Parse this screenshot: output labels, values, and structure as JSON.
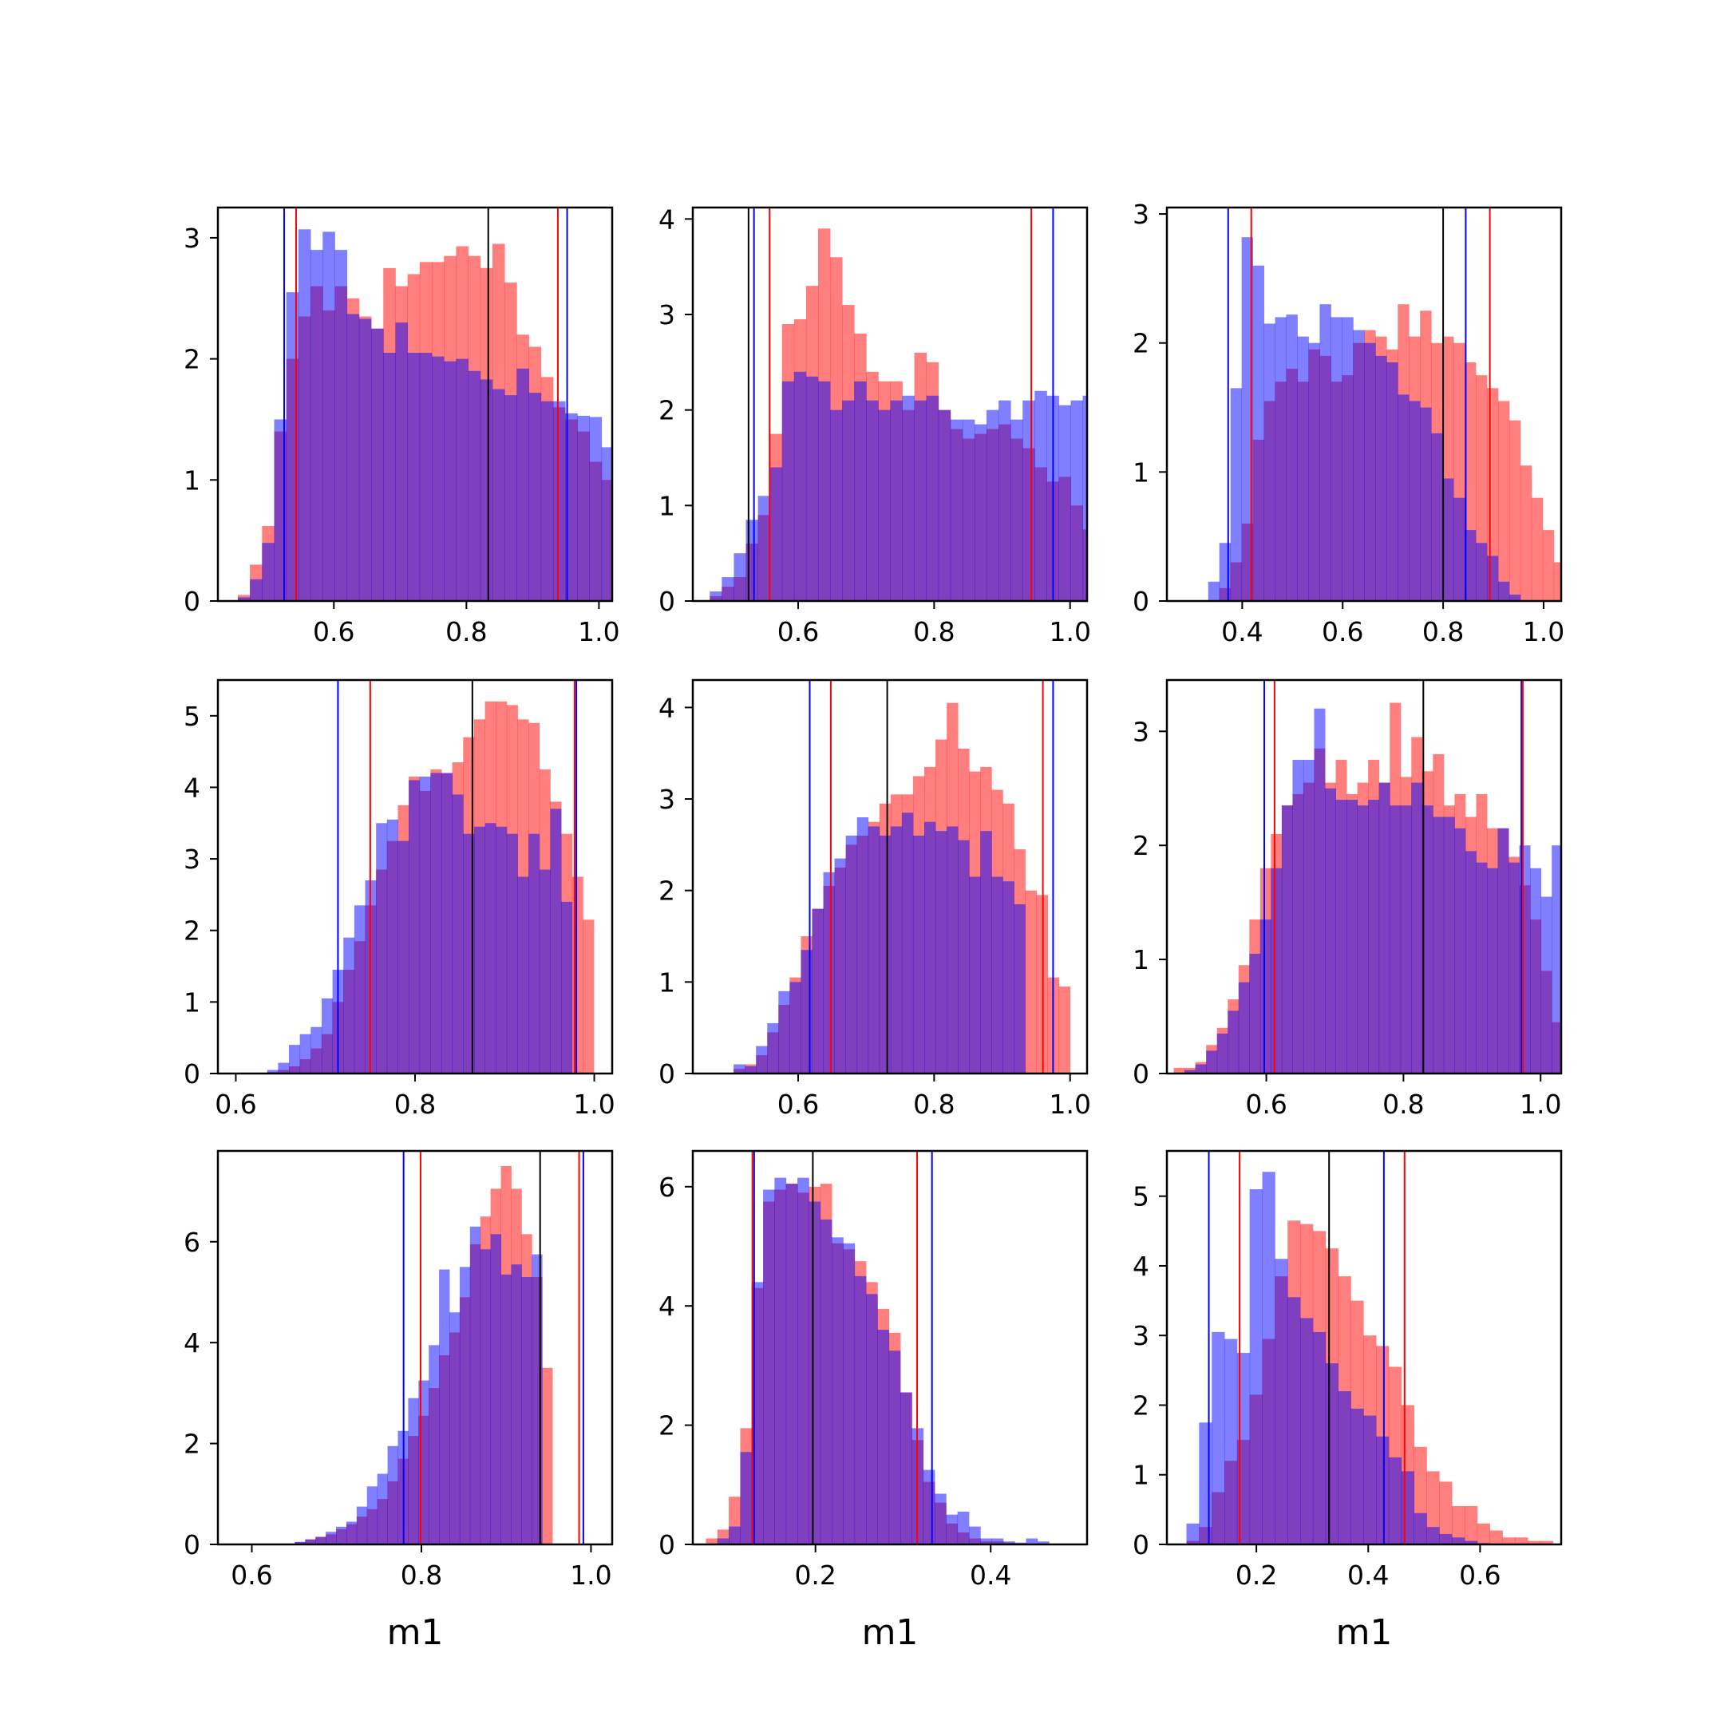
{
  "colors": {
    "red_hist": "#ff0000",
    "blue_hist": "#0000ff",
    "red_line": "#ff0000",
    "blue_line": "#0000ff",
    "median_line": "#000000"
  },
  "histogram_opacity": 0.5,
  "chart_data": [
    {
      "type": "histogram",
      "xlabel": "",
      "xlim": [
        0.425,
        1.02
      ],
      "ylim": [
        0,
        3.25
      ],
      "xticks": [
        0.6,
        0.8,
        1.0
      ],
      "xtick_labels": [
        "0.6",
        "0.8",
        "1.0"
      ],
      "yticks": [
        0,
        1,
        2,
        3
      ],
      "ytick_labels": [
        "0",
        "1",
        "2",
        "3"
      ],
      "bin_edges_start": 0.455,
      "bin_width": 0.0183,
      "series": [
        {
          "color": "red",
          "heights": [
            0.05,
            0.3,
            0.62,
            1.4,
            2.0,
            2.35,
            2.6,
            2.4,
            2.6,
            2.5,
            2.35,
            2.25,
            2.75,
            2.6,
            2.7,
            2.8,
            2.8,
            2.85,
            2.93,
            2.85,
            2.75,
            2.95,
            2.63,
            2.2,
            2.1,
            1.85,
            1.6,
            1.5,
            1.4,
            1.15,
            1.0,
            0.85,
            0.5,
            0.35
          ]
        },
        {
          "color": "blue",
          "heights": [
            0.03,
            0.18,
            0.48,
            1.5,
            2.55,
            3.07,
            2.9,
            3.05,
            2.9,
            2.37,
            2.33,
            2.25,
            2.05,
            2.3,
            2.05,
            2.05,
            2.02,
            1.98,
            2.0,
            1.9,
            1.83,
            1.75,
            1.7,
            1.92,
            1.72,
            1.65,
            1.65,
            1.55,
            1.53,
            1.52,
            1.27,
            1.3,
            0.85,
            1.05
          ]
        }
      ],
      "vlines": [
        {
          "x": 0.525,
          "color": "blue"
        },
        {
          "x": 0.543,
          "color": "red"
        },
        {
          "x": 0.833,
          "color": "black"
        },
        {
          "x": 0.938,
          "color": "red"
        },
        {
          "x": 0.952,
          "color": "blue"
        }
      ]
    },
    {
      "type": "histogram",
      "xlabel": "",
      "xlim": [
        0.445,
        1.025
      ],
      "ylim": [
        0,
        4.12
      ],
      "xticks": [
        0.6,
        0.8,
        1.0
      ],
      "xtick_labels": [
        "0.6",
        "0.8",
        "1.0"
      ],
      "yticks": [
        0,
        1,
        2,
        3,
        4
      ],
      "ytick_labels": [
        "0",
        "1",
        "2",
        "3",
        "4"
      ],
      "bin_edges_start": 0.47,
      "bin_width": 0.0177,
      "series": [
        {
          "color": "red",
          "heights": [
            0.05,
            0.15,
            0.25,
            0.6,
            0.9,
            1.75,
            2.9,
            2.95,
            3.3,
            3.9,
            3.6,
            3.1,
            2.8,
            2.4,
            2.3,
            2.3,
            2.0,
            2.6,
            2.5,
            2.0,
            1.8,
            1.7,
            1.75,
            1.8,
            1.85,
            1.7,
            1.6,
            1.4,
            1.25,
            1.3,
            1.0,
            0.75
          ]
        },
        {
          "color": "blue",
          "heights": [
            0.1,
            0.25,
            0.5,
            0.85,
            1.1,
            1.4,
            2.3,
            2.4,
            2.35,
            2.3,
            2.0,
            2.1,
            2.3,
            2.1,
            2.0,
            2.1,
            2.15,
            2.1,
            2.15,
            2.0,
            1.9,
            1.9,
            1.85,
            2.0,
            2.1,
            1.9,
            2.1,
            2.2,
            2.15,
            2.05,
            2.1,
            2.15,
            1.05
          ]
        }
      ],
      "vlines": [
        {
          "x": 0.527,
          "color": "black"
        },
        {
          "x": 0.535,
          "color": "blue"
        },
        {
          "x": 0.558,
          "color": "red"
        },
        {
          "x": 0.943,
          "color": "red"
        },
        {
          "x": 0.975,
          "color": "blue"
        }
      ]
    },
    {
      "type": "histogram",
      "xlabel": "",
      "xlim": [
        0.25,
        1.035
      ],
      "ylim": [
        0,
        3.05
      ],
      "xticks": [
        0.4,
        0.6,
        0.8,
        1.0
      ],
      "xtick_labels": [
        "0.4",
        "0.6",
        "0.8",
        "1.0"
      ],
      "yticks": [
        0,
        1,
        2,
        3
      ],
      "ytick_labels": [
        "0",
        "1",
        "2",
        "3"
      ],
      "bin_edges_start": 0.31,
      "bin_width": 0.0222,
      "series": [
        {
          "color": "red",
          "heights": [
            0.0,
            0.0,
            0.1,
            0.3,
            0.6,
            1.25,
            1.55,
            1.7,
            1.8,
            1.7,
            1.95,
            1.9,
            1.7,
            1.75,
            2.0,
            2.1,
            2.05,
            1.95,
            2.3,
            2.05,
            2.25,
            2.0,
            2.05,
            2.0,
            1.85,
            1.75,
            1.65,
            1.55,
            1.4,
            1.05,
            0.8,
            0.55,
            0.3,
            0.12
          ]
        },
        {
          "color": "blue",
          "heights": [
            0.0,
            0.15,
            0.45,
            1.65,
            2.82,
            2.6,
            2.15,
            2.2,
            2.22,
            2.05,
            2.0,
            2.3,
            2.2,
            2.2,
            2.1,
            2.0,
            1.9,
            1.85,
            1.6,
            1.55,
            1.5,
            1.3,
            0.95,
            0.8,
            0.55,
            0.45,
            0.35,
            0.15,
            0.05
          ]
        }
      ],
      "vlines": [
        {
          "x": 0.372,
          "color": "blue"
        },
        {
          "x": 0.418,
          "color": "red"
        },
        {
          "x": 0.8,
          "color": "black"
        },
        {
          "x": 0.845,
          "color": "blue"
        },
        {
          "x": 0.893,
          "color": "red"
        }
      ]
    },
    {
      "type": "histogram",
      "xlabel": "",
      "xlim": [
        0.58,
        1.02
      ],
      "ylim": [
        0,
        5.5
      ],
      "xticks": [
        0.6,
        0.8,
        1.0
      ],
      "xtick_labels": [
        "0.6",
        "0.8",
        "1.0"
      ],
      "yticks": [
        0,
        1,
        2,
        3,
        4,
        5
      ],
      "ytick_labels": [
        "0",
        "1",
        "2",
        "3",
        "4",
        "5"
      ],
      "bin_edges_start": 0.635,
      "bin_width": 0.01215,
      "series": [
        {
          "color": "red",
          "heights": [
            0.02,
            0.05,
            0.1,
            0.2,
            0.35,
            0.55,
            1.0,
            1.45,
            1.85,
            2.35,
            2.85,
            3.25,
            3.75,
            4.15,
            3.95,
            4.25,
            4.2,
            4.35,
            4.7,
            4.95,
            5.2,
            5.2,
            5.15,
            4.95,
            4.9,
            4.25,
            3.8,
            3.35,
            2.75,
            2.15
          ]
        },
        {
          "color": "blue",
          "heights": [
            0.05,
            0.15,
            0.4,
            0.55,
            0.65,
            1.05,
            1.45,
            1.9,
            2.35,
            2.7,
            3.5,
            3.55,
            3.25,
            4.1,
            4.15,
            4.2,
            4.2,
            3.9,
            3.35,
            3.45,
            3.5,
            3.45,
            3.35,
            2.75,
            3.35,
            2.85,
            3.7,
            2.4
          ]
        }
      ],
      "vlines": [
        {
          "x": 0.714,
          "color": "blue"
        },
        {
          "x": 0.75,
          "color": "red"
        },
        {
          "x": 0.864,
          "color": "black"
        },
        {
          "x": 0.978,
          "color": "red"
        },
        {
          "x": 0.98,
          "color": "blue"
        }
      ]
    },
    {
      "type": "histogram",
      "xlabel": "",
      "xlim": [
        0.445,
        1.025
      ],
      "ylim": [
        0,
        4.3
      ],
      "xticks": [
        0.6,
        0.8,
        1.0
      ],
      "xtick_labels": [
        "0.6",
        "0.8",
        "1.0"
      ],
      "yticks": [
        0,
        1,
        2,
        3,
        4
      ],
      "ytick_labels": [
        "0",
        "1",
        "2",
        "3",
        "4"
      ],
      "bin_edges_start": 0.505,
      "bin_width": 0.0165,
      "series": [
        {
          "color": "red",
          "heights": [
            0.05,
            0.1,
            0.2,
            0.45,
            0.75,
            1.05,
            1.5,
            1.8,
            2.05,
            2.25,
            2.5,
            2.6,
            2.75,
            2.95,
            3.05,
            3.05,
            3.25,
            3.35,
            3.65,
            4.05,
            3.55,
            3.3,
            3.35,
            3.1,
            2.95,
            2.45,
            2.0,
            1.95,
            1.05,
            0.95
          ]
        },
        {
          "color": "blue",
          "heights": [
            0.1,
            0.08,
            0.3,
            0.55,
            0.9,
            1.0,
            1.35,
            1.8,
            2.2,
            2.35,
            2.6,
            2.8,
            2.7,
            2.6,
            2.7,
            2.85,
            2.6,
            2.75,
            2.65,
            2.7,
            2.55,
            2.15,
            2.65,
            2.15,
            2.1,
            1.85
          ]
        }
      ],
      "vlines": [
        {
          "x": 0.617,
          "color": "blue"
        },
        {
          "x": 0.648,
          "color": "red"
        },
        {
          "x": 0.731,
          "color": "black"
        },
        {
          "x": 0.96,
          "color": "red"
        },
        {
          "x": 0.975,
          "color": "blue"
        }
      ]
    },
    {
      "type": "histogram",
      "xlabel": "",
      "xlim": [
        0.455,
        1.03
      ],
      "ylim": [
        0,
        3.45
      ],
      "xticks": [
        0.6,
        0.8,
        1.0
      ],
      "xtick_labels": [
        "0.6",
        "0.8",
        "1.0"
      ],
      "yticks": [
        0,
        1,
        2,
        3
      ],
      "ytick_labels": [
        "0",
        "1",
        "2",
        "3"
      ],
      "bin_edges_start": 0.465,
      "bin_width": 0.01575,
      "series": [
        {
          "color": "red",
          "heights": [
            0.05,
            0.05,
            0.1,
            0.25,
            0.4,
            0.65,
            0.95,
            1.35,
            1.8,
            2.1,
            2.35,
            2.45,
            2.55,
            2.85,
            2.55,
            2.75,
            2.45,
            2.55,
            2.75,
            2.55,
            3.25,
            2.6,
            2.95,
            2.65,
            2.8,
            2.35,
            2.45,
            2.25,
            2.45,
            2.15,
            2.15,
            1.9,
            1.65,
            1.35,
            0.9,
            0.45
          ]
        },
        {
          "color": "blue",
          "heights": [
            0.0,
            0.03,
            0.08,
            0.2,
            0.35,
            0.55,
            0.8,
            1.05,
            1.35,
            1.8,
            2.35,
            2.75,
            2.75,
            3.2,
            2.5,
            2.4,
            2.4,
            2.35,
            2.4,
            2.55,
            2.35,
            2.35,
            2.55,
            2.35,
            2.25,
            2.25,
            2.15,
            1.95,
            1.85,
            1.8,
            2.15,
            1.85,
            2.0,
            1.8,
            1.55,
            2.0
          ]
        }
      ],
      "vlines": [
        {
          "x": 0.597,
          "color": "blue"
        },
        {
          "x": 0.612,
          "color": "red"
        },
        {
          "x": 0.829,
          "color": "black"
        },
        {
          "x": 0.972,
          "color": "blue"
        },
        {
          "x": 0.974,
          "color": "red"
        }
      ]
    },
    {
      "type": "histogram",
      "xlabel": "m1",
      "xlim": [
        0.56,
        1.025
      ],
      "ylim": [
        0,
        7.8
      ],
      "xticks": [
        0.6,
        0.8,
        1.0
      ],
      "xtick_labels": [
        "0.6",
        "0.8",
        "1.0"
      ],
      "yticks": [
        0,
        2,
        4,
        6
      ],
      "ytick_labels": [
        "0",
        "2",
        "4",
        "6"
      ],
      "bin_edges_start": 0.59,
      "bin_width": 0.01215,
      "series": [
        {
          "color": "red",
          "heights": [
            0.0,
            0.0,
            0.0,
            0.0,
            0.0,
            0.05,
            0.1,
            0.15,
            0.2,
            0.3,
            0.4,
            0.55,
            0.7,
            0.9,
            1.25,
            1.7,
            2.15,
            2.55,
            3.1,
            3.75,
            4.2,
            4.9,
            5.95,
            6.5,
            7.05,
            7.5,
            7.05,
            6.15,
            5.3,
            3.5
          ]
        },
        {
          "color": "blue",
          "heights": [
            0.0,
            0.0,
            0.0,
            0.0,
            0.0,
            0.05,
            0.1,
            0.15,
            0.25,
            0.35,
            0.45,
            0.75,
            1.15,
            1.4,
            1.95,
            2.25,
            2.9,
            3.25,
            3.95,
            5.45,
            4.6,
            5.5,
            6.3,
            5.85,
            6.15,
            5.35,
            5.55,
            5.3,
            5.75
          ]
        }
      ],
      "vlines": [
        {
          "x": 0.779,
          "color": "blue"
        },
        {
          "x": 0.799,
          "color": "red"
        },
        {
          "x": 0.94,
          "color": "black"
        },
        {
          "x": 0.986,
          "color": "red"
        },
        {
          "x": 0.991,
          "color": "blue"
        }
      ]
    },
    {
      "type": "histogram",
      "xlabel": "m1",
      "xlim": [
        0.06,
        0.51
      ],
      "ylim": [
        0,
        6.6
      ],
      "xticks": [
        0.2,
        0.4
      ],
      "xtick_labels": [
        "0.2",
        "0.4"
      ],
      "yticks": [
        0,
        2,
        4,
        6
      ],
      "ytick_labels": [
        "0",
        "2",
        "4",
        "6"
      ],
      "bin_edges_start": 0.075,
      "bin_width": 0.01305,
      "series": [
        {
          "color": "red",
          "heights": [
            0.1,
            0.25,
            0.8,
            1.95,
            4.3,
            5.75,
            5.95,
            6.05,
            5.9,
            6.0,
            6.05,
            5.05,
            4.95,
            4.75,
            4.4,
            3.95,
            3.55,
            2.55,
            1.75,
            1.05,
            0.7,
            0.35,
            0.2,
            0.1,
            0.05,
            0.05,
            0.03,
            0.02,
            0.01,
            0.01
          ]
        },
        {
          "color": "blue",
          "heights": [
            0.0,
            0.1,
            0.3,
            1.55,
            4.4,
            5.95,
            6.15,
            6.05,
            6.15,
            5.75,
            5.45,
            5.15,
            5.05,
            4.5,
            4.2,
            3.6,
            3.25,
            2.55,
            1.95,
            1.25,
            0.85,
            0.5,
            0.55,
            0.3,
            0.1,
            0.1,
            0.05,
            0.03,
            0.1,
            0.05
          ]
        }
      ],
      "vlines": [
        {
          "x": 0.128,
          "color": "red"
        },
        {
          "x": 0.13,
          "color": "blue"
        },
        {
          "x": 0.197,
          "color": "black"
        },
        {
          "x": 0.316,
          "color": "red"
        },
        {
          "x": 0.333,
          "color": "blue"
        }
      ]
    },
    {
      "type": "histogram",
      "xlabel": "m1",
      "xlim": [
        0.04,
        0.745
      ],
      "ylim": [
        0,
        5.65
      ],
      "xticks": [
        0.2,
        0.4,
        0.6
      ],
      "xtick_labels": [
        "0.2",
        "0.4",
        "0.6"
      ],
      "yticks": [
        0,
        1,
        2,
        3,
        4,
        5
      ],
      "ytick_labels": [
        "0",
        "1",
        "2",
        "3",
        "4",
        "5"
      ],
      "bin_edges_start": 0.075,
      "bin_width": 0.0226,
      "series": [
        {
          "color": "red",
          "heights": [
            0.05,
            0.25,
            0.75,
            1.2,
            1.5,
            2.15,
            2.95,
            3.85,
            4.65,
            4.6,
            4.5,
            4.25,
            3.85,
            3.5,
            3.0,
            2.85,
            2.55,
            2.0,
            1.4,
            1.05,
            0.9,
            0.55,
            0.55,
            0.3,
            0.2,
            0.1,
            0.1,
            0.05,
            0.05
          ]
        },
        {
          "color": "blue",
          "heights": [
            0.3,
            1.75,
            3.05,
            2.95,
            2.75,
            5.1,
            5.35,
            4.1,
            3.55,
            3.25,
            3.05,
            2.6,
            2.2,
            1.95,
            1.85,
            1.55,
            1.25,
            1.05,
            0.45,
            0.25,
            0.15,
            0.1,
            0.05,
            0.02
          ]
        }
      ],
      "vlines": [
        {
          "x": 0.115,
          "color": "blue"
        },
        {
          "x": 0.17,
          "color": "red"
        },
        {
          "x": 0.33,
          "color": "black"
        },
        {
          "x": 0.428,
          "color": "blue"
        },
        {
          "x": 0.465,
          "color": "red"
        }
      ]
    }
  ]
}
